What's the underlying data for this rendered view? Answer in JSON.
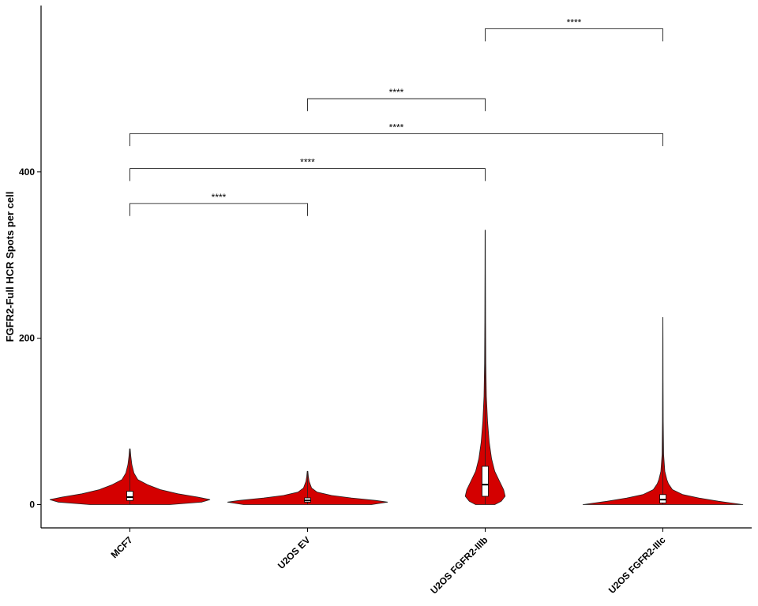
{
  "chart_data": {
    "type": "violin",
    "title": "",
    "xlabel": "",
    "ylabel": "FGFR2-Full HCR Spots per cell",
    "ylim": [
      -28,
      600
    ],
    "yticks": [
      0,
      200,
      400
    ],
    "grid": false,
    "legend": "none",
    "fill_color": "#d40000",
    "categories": [
      "MCF7",
      "U2OS EV",
      "U2OS FGFR2-IIIb",
      "U2OS FGFR2-IIIc"
    ],
    "violins": [
      {
        "category": "MCF7",
        "min": 0,
        "max": 67,
        "q1": 5,
        "median": 9,
        "q3": 16,
        "density": [
          [
            0,
            0.5
          ],
          [
            3,
            0.9
          ],
          [
            6,
            1.0
          ],
          [
            9,
            0.85
          ],
          [
            13,
            0.6
          ],
          [
            18,
            0.38
          ],
          [
            24,
            0.22
          ],
          [
            30,
            0.1
          ],
          [
            38,
            0.05
          ],
          [
            48,
            0.025
          ],
          [
            58,
            0.012
          ],
          [
            67,
            0.004
          ]
        ]
      },
      {
        "category": "U2OS EV",
        "min": 0,
        "max": 40,
        "q1": 3,
        "median": 5,
        "q3": 8,
        "density": [
          [
            0,
            0.8
          ],
          [
            3,
            1.0
          ],
          [
            5,
            0.85
          ],
          [
            8,
            0.55
          ],
          [
            11,
            0.3
          ],
          [
            15,
            0.12
          ],
          [
            20,
            0.05
          ],
          [
            28,
            0.02
          ],
          [
            34,
            0.01
          ],
          [
            40,
            0.004
          ]
        ]
      },
      {
        "category": "U2OS FGFR2-IIIb",
        "min": 0,
        "max": 330,
        "q1": 10,
        "median": 24,
        "q3": 46,
        "density": [
          [
            0,
            0.12
          ],
          [
            4,
            0.2
          ],
          [
            10,
            0.25
          ],
          [
            18,
            0.23
          ],
          [
            28,
            0.18
          ],
          [
            40,
            0.12
          ],
          [
            55,
            0.08
          ],
          [
            75,
            0.05
          ],
          [
            100,
            0.03
          ],
          [
            130,
            0.015
          ],
          [
            170,
            0.008
          ],
          [
            220,
            0.005
          ],
          [
            280,
            0.003
          ],
          [
            330,
            0.002
          ]
        ]
      },
      {
        "category": "U2OS FGFR2-IIIc",
        "min": 0,
        "max": 225,
        "q1": 2,
        "median": 6,
        "q3": 12,
        "density": [
          [
            0,
            1.0
          ],
          [
            4,
            0.7
          ],
          [
            8,
            0.45
          ],
          [
            12,
            0.25
          ],
          [
            18,
            0.12
          ],
          [
            25,
            0.07
          ],
          [
            30,
            0.05
          ],
          [
            40,
            0.025
          ],
          [
            60,
            0.01
          ],
          [
            100,
            0.005
          ],
          [
            150,
            0.003
          ],
          [
            200,
            0.002
          ],
          [
            225,
            0.001
          ]
        ]
      }
    ],
    "comparisons": [
      {
        "from": "MCF7",
        "to": "U2OS EV",
        "label": "****",
        "y": 362,
        "left_tip": 347,
        "right_tip": 347
      },
      {
        "from": "MCF7",
        "to": "U2OS FGFR2-IIIb",
        "label": "****",
        "y": 404,
        "left_tip": 389,
        "right_tip": 389
      },
      {
        "from": "MCF7",
        "to": "U2OS FGFR2-IIIc",
        "label": "****",
        "y": 446,
        "left_tip": 431,
        "right_tip": 431
      },
      {
        "from": "U2OS EV",
        "to": "U2OS FGFR2-IIIb",
        "label": "****",
        "y": 488,
        "left_tip": 473,
        "right_tip": 473
      },
      {
        "from": "U2OS FGFR2-IIIb",
        "to": "U2OS FGFR2-IIIc",
        "label": "****",
        "y": 572,
        "left_tip": 557,
        "right_tip": 557
      }
    ]
  }
}
